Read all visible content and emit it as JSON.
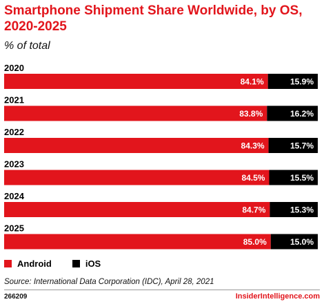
{
  "colors": {
    "android": "#e2151c",
    "ios": "#000000",
    "title": "#e2151c"
  },
  "chart_data": {
    "type": "bar",
    "orientation": "horizontal-stacked-100",
    "title": "Smartphone Shipment Share Worldwide, by OS, 2020-2025",
    "subtitle": "% of total",
    "categories": [
      "2020",
      "2021",
      "2022",
      "2023",
      "2024",
      "2025"
    ],
    "series": [
      {
        "name": "Android",
        "values": [
          84.1,
          83.8,
          84.3,
          84.5,
          84.7,
          85.0
        ],
        "labels": [
          "84.1%",
          "83.8%",
          "84.3%",
          "84.5%",
          "84.7%",
          "85.0%"
        ]
      },
      {
        "name": "iOS",
        "values": [
          15.9,
          16.2,
          15.7,
          15.5,
          15.3,
          15.0
        ],
        "labels": [
          "15.9%",
          "16.2%",
          "15.7%",
          "15.5%",
          "15.3%",
          "15.0%"
        ]
      }
    ],
    "xlim": [
      0,
      100
    ],
    "legend": "bottom-left"
  },
  "source": "Source: International Data Corporation (IDC), April 28, 2021",
  "chart_id": "266209",
  "brand": "InsiderIntelligence.com"
}
